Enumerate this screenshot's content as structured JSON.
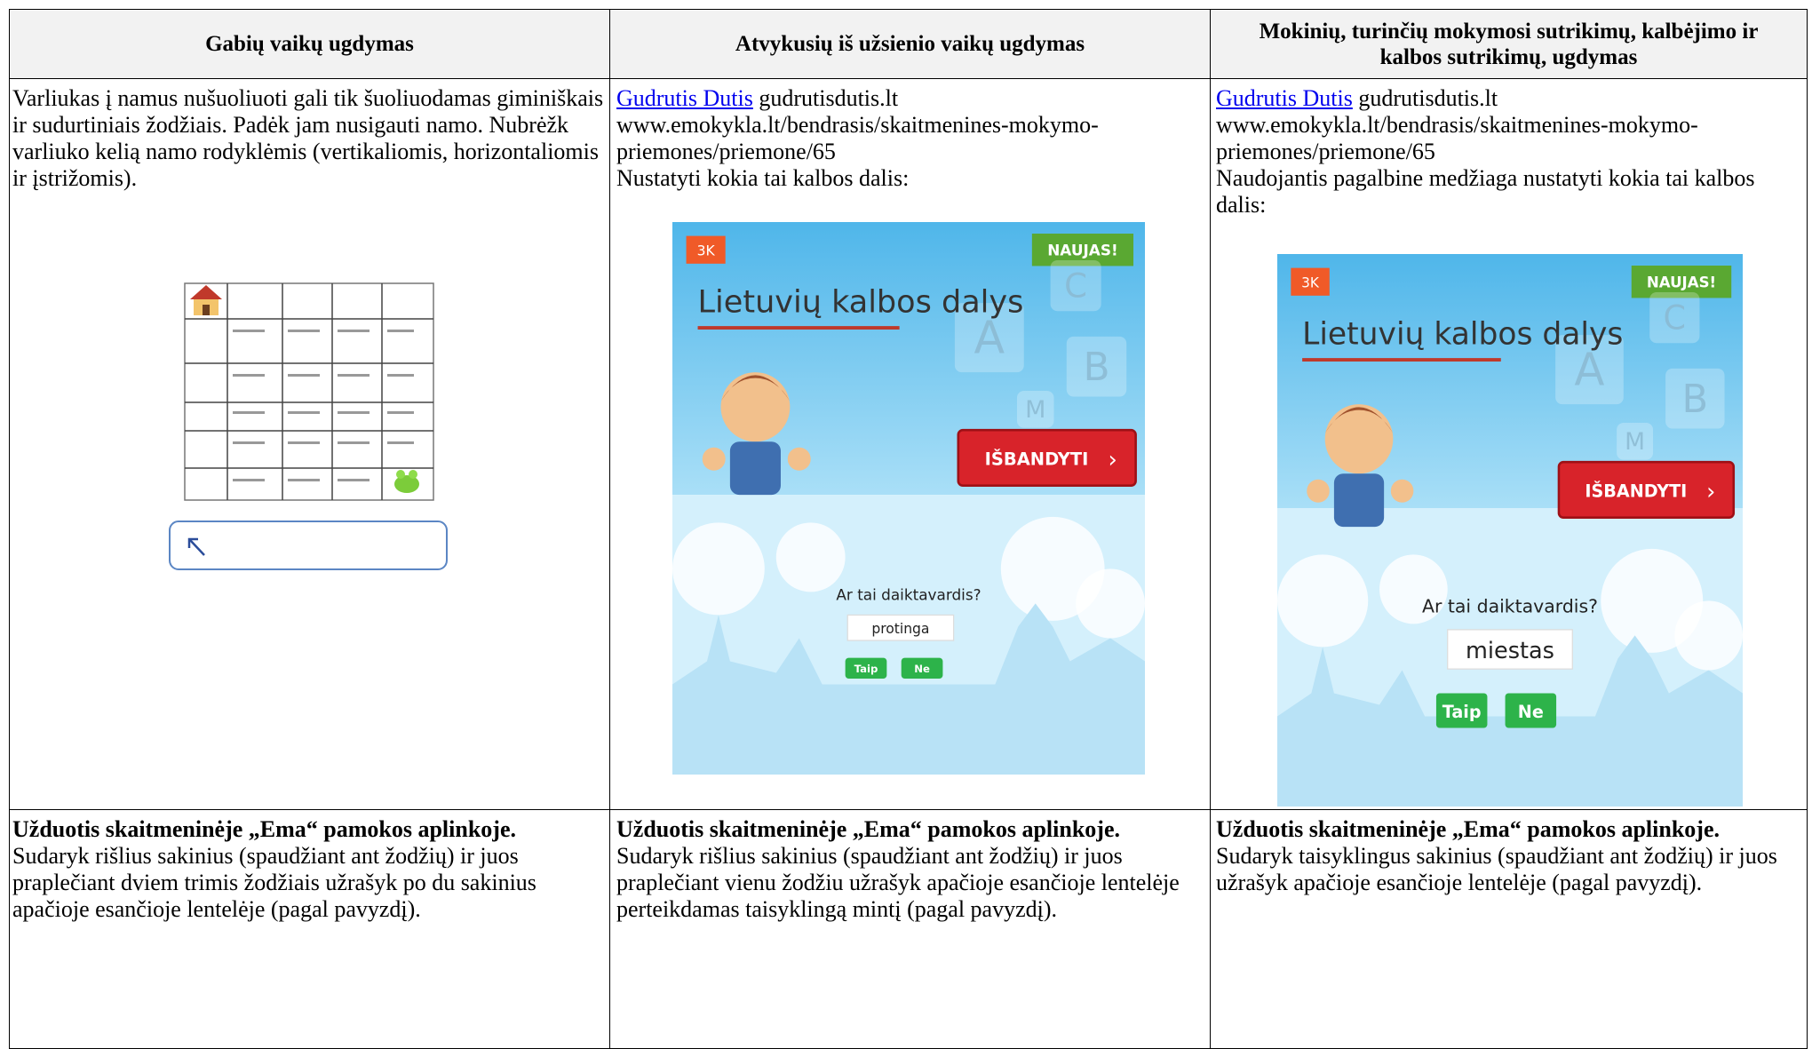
{
  "table": {
    "headers": [
      "Gabių vaikų ugdymas",
      "Atvykusių iš užsienio vaikų ugdymas",
      "Mokinių, turinčių mokymosi sutrikimų, kalbėjimo ir kalbos sutrikimų, ugdymas"
    ],
    "rows": [
      [
        {
          "text": "Varliukas į namus nušuoliuoti gali tik šuoliuodamas giminiškais ir sudurtiniais žodžiais. Padėk jam nusigauti namo. Nubrėžk varliuko kelią namo rodyklėmis (vertikaliomis, horizontaliomis ir įstrižomis)."
        },
        {
          "link": "Gudrutis Dutis",
          "site": "gudrutisdutis.lt",
          "url": "www.emokykla.lt/bendrasis/skaitmenines-mokymo-priemones/priemone/65",
          "instruction": "Nustatyti kokia tai kalbos dalis:",
          "game": {
            "badge": "3K",
            "new": "NAUJAS!",
            "title": "Lietuvių kalbos dalys",
            "letters": [
              "C",
              "A",
              "B",
              "M"
            ],
            "button": "IŠBANDYTI",
            "question": "Ar tai daiktavardis?",
            "word": "protinga",
            "yes": "Taip",
            "no": "Ne"
          }
        },
        {
          "link": "Gudrutis Dutis",
          "site": "gudrutisdutis.lt",
          "url": "www.emokykla.lt/bendrasis/skaitmenines-mokymo-priemones/priemone/65",
          "instruction": "Naudojantis pagalbine medžiaga nustatyti kokia tai kalbos dalis:",
          "game": {
            "badge": "3K",
            "new": "NAUJAS!",
            "title": "Lietuvių kalbos dalys",
            "letters": [
              "C",
              "A",
              "B",
              "M"
            ],
            "button": "IŠBANDYTI",
            "question": "Ar tai daiktavardis?",
            "word": "miestas",
            "yes": "Taip",
            "no": "Ne"
          }
        }
      ],
      [
        {
          "title": "Užduotis skaitmeninėje „Ema“ pamokos aplinkoje.",
          "text": "Sudaryk rišlius sakinius (spaudžiant ant žodžių) ir juos praplečiant dviem trimis žodžiais užrašyk po du sakinius apačioje esančioje lentelėje (pagal pavyzdį)."
        },
        {
          "title": "Užduotis skaitmeninėje „Ema“ pamokos aplinkoje.",
          "text": "Sudaryk rišlius sakinius (spaudžiant ant žodžių) ir juos praplečiant vienu žodžiu užrašyk apačioje esančioje lentelėje perteikdamas taisyklingą mintį (pagal pavyzdį)."
        },
        {
          "title": "Užduotis skaitmeninėje „Ema“ pamokos aplinkoje.",
          "text": "Sudaryk taisyklingus sakinius (spaudžiant ant žodžių) ir juos užrašyk apačioje esančioje lentelėje (pagal pavyzdį)."
        }
      ]
    ]
  }
}
